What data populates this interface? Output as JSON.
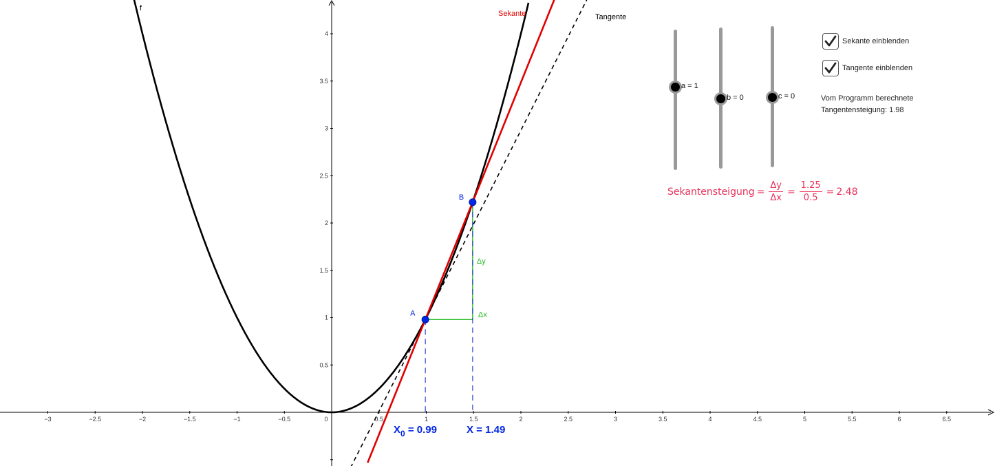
{
  "chart_data": {
    "type": "line",
    "function_label": "f",
    "function": "x^2",
    "x_ticks": [
      "-3",
      "-2.5",
      "-2",
      "-1.5",
      "-1",
      "-0.5",
      "0",
      "0.5",
      "1",
      "1.5",
      "2",
      "2.5",
      "3",
      "3.5",
      "4",
      "4.5",
      "5",
      "5.5",
      "6",
      "6.5"
    ],
    "y_ticks": [
      "0.5",
      "1",
      "1.5",
      "2",
      "2.5",
      "3",
      "3.5",
      "4"
    ],
    "xlim": [
      -3.5,
      7
    ],
    "ylim": [
      -0.5,
      4.35
    ],
    "point_A": {
      "label": "A",
      "x": 0.99,
      "y": 0.98
    },
    "point_B": {
      "label": "B",
      "x": 1.49,
      "y": 2.22
    },
    "secant": {
      "label": "Sekante",
      "slope": 2.48,
      "color": "#e00000"
    },
    "tangent": {
      "label": "Tangente",
      "slope": 1.98,
      "color": "#000000"
    },
    "delta_x_label": "Δx",
    "delta_y_label": "Δy",
    "x0_label": "X₀ = 0.99",
    "x0_sub": "0",
    "x0_value": "= 0.99",
    "x0_prefix": "X",
    "x_label_text": "X = 1.49"
  },
  "controls": {
    "checkbox_sekante": "Sekante einblenden",
    "checkbox_tangente": "Tangente einblenden",
    "checkbox_sekante_checked": true,
    "checkbox_tangente_checked": true,
    "slider_a": "a = 1",
    "slider_b": "b = 0",
    "slider_c": "c = 0",
    "info_line1": "Vom Programm berechnete",
    "info_line2": "Tangentensteigung: 1.98"
  },
  "formula": {
    "name": "Sekantensteigung",
    "num_symbol": "Δy",
    "den_symbol": "Δx",
    "num_value": "1.25",
    "den_value": "0.5",
    "result": "2.48"
  },
  "colors": {
    "secant": "#e00000",
    "tangent": "#000000",
    "points": "#0026e6",
    "delta": "#22bb22",
    "formula": "#e8305a",
    "dashed_guides": "#2233cc"
  }
}
